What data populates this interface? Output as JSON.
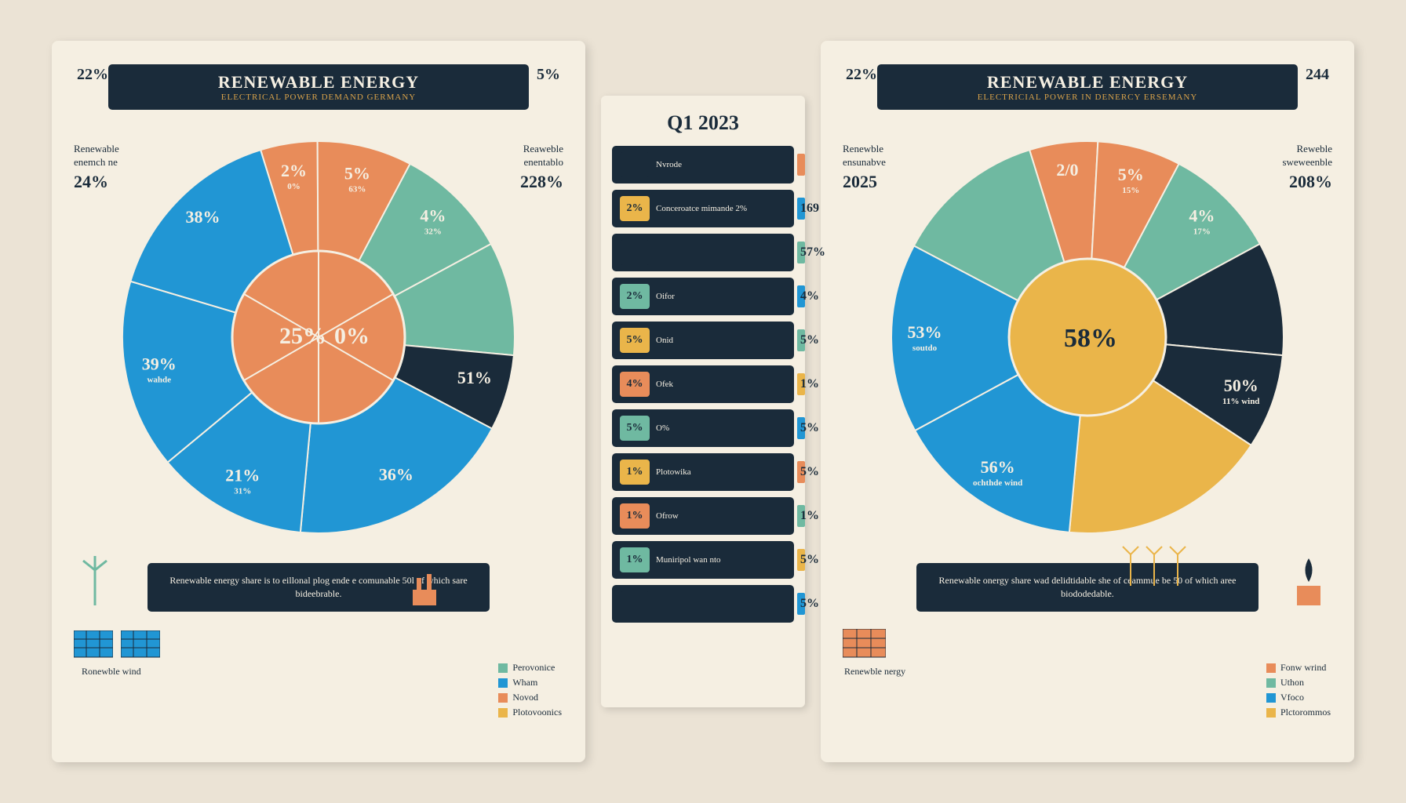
{
  "colors": {
    "bg": "#ebe3d5",
    "panel": "#f5efe2",
    "dark": "#1a2b3a",
    "blue": "#2196d4",
    "teal": "#6fb9a1",
    "orange": "#e88c5a",
    "gold": "#eab54a",
    "darkteal": "#3a8b7a",
    "ltorange": "#f4a470"
  },
  "left": {
    "corner_tl": "22%",
    "corner_tr": "5%",
    "title_main": "RENEWABLE ENERGY",
    "title_sub": "ELECTRICAL POWER DEMAND GERMANY",
    "side_l_label": "Renewable enemch ne",
    "side_l_val": "24%",
    "side_r_label": "Reaweble enentablo",
    "side_r_val": "228%",
    "center_a": "25%",
    "center_b": "0%",
    "caption": "Renewable energy share is to eillonal plog ende e comunable 50l of which sare bideebrable.",
    "bottom_left_label": "Ronewble wind",
    "legend_items": [
      {
        "color": "#6fb9a1",
        "label": "Perovonice"
      },
      {
        "color": "#2196d4",
        "label": "Wham"
      },
      {
        "color": "#e88c5a",
        "label": "Novod"
      },
      {
        "color": "#eab54a",
        "label": "Plotovoonics"
      }
    ],
    "pie": {
      "type": "pie",
      "outer_slices": [
        {
          "label": "2%",
          "sub": "0%",
          "value": 15,
          "color": "#e88c5a"
        },
        {
          "label": "5%",
          "sub": "63%",
          "value": 25,
          "color": "#e88c5a"
        },
        {
          "label": "4%",
          "sub": "32%",
          "value": 30,
          "color": "#6fb9a1"
        },
        {
          "label": "",
          "sub": "",
          "value": 30,
          "color": "#6fb9a1"
        },
        {
          "label": "51%",
          "sub": "",
          "value": 20,
          "color": "#1a2b3a"
        },
        {
          "label": "36%",
          "sub": "",
          "value": 60,
          "color": "#2196d4"
        },
        {
          "label": "21%",
          "sub": "31%",
          "value": 40,
          "color": "#2196d4"
        },
        {
          "label": "39%",
          "sub": "wahde",
          "value": 50,
          "color": "#2196d4"
        },
        {
          "label": "38%",
          "sub": "",
          "value": 50,
          "color": "#2196d4"
        }
      ],
      "inner_color": "#e88c5a"
    }
  },
  "middle": {
    "title": "Q1 2023",
    "rows": [
      {
        "chip_val": "",
        "chip_color": "#1a2b3a",
        "label": "Nvrode",
        "bar_color": "#e88c5a",
        "out_pct": ""
      },
      {
        "chip_val": "2%",
        "chip_color": "#eab54a",
        "label": "Conceroatce mimande 2%",
        "bar_color": "#2196d4",
        "out_pct": "169"
      },
      {
        "chip_val": "",
        "chip_color": "#1a2b3a",
        "label": "",
        "bar_color": "#6fb9a1",
        "out_pct": "57%"
      },
      {
        "chip_val": "2%",
        "chip_color": "#6fb9a1",
        "label": "Oifor",
        "bar_color": "#2196d4",
        "out_pct": "4%"
      },
      {
        "chip_val": "5%",
        "chip_color": "#eab54a",
        "label": "Onid",
        "bar_color": "#6fb9a1",
        "out_pct": "5%"
      },
      {
        "chip_val": "4%",
        "chip_color": "#e88c5a",
        "label": "Ofek",
        "bar_color": "#eab54a",
        "out_pct": "1%"
      },
      {
        "chip_val": "5%",
        "chip_color": "#6fb9a1",
        "label": "O%",
        "bar_color": "#2196d4",
        "out_pct": "5%"
      },
      {
        "chip_val": "1%",
        "chip_color": "#eab54a",
        "label": "Plotowika",
        "bar_color": "#e88c5a",
        "out_pct": "5%"
      },
      {
        "chip_val": "1%",
        "chip_color": "#e88c5a",
        "label": "Ofrow",
        "bar_color": "#6fb9a1",
        "out_pct": "1%"
      },
      {
        "chip_val": "1%",
        "chip_color": "#6fb9a1",
        "label": "Muniripol wan nto",
        "bar_color": "#eab54a",
        "out_pct": "5%"
      },
      {
        "chip_val": "",
        "chip_color": "#1a2b3a",
        "label": "",
        "bar_color": "#2196d4",
        "out_pct": "5%"
      }
    ]
  },
  "right": {
    "corner_tl": "22%",
    "corner_tr": "244",
    "title_main": "RENEWABLE ENERGY",
    "title_sub": "ELECTRICIAL POWER IN DENERCY ERSEMANY",
    "side_l_label": "Renewble ensunabve",
    "side_l_val": "2025",
    "side_r_label": "Reweble sweweenble",
    "side_r_val": "208%",
    "center_val": "58%",
    "caption": "Renewable onergy share wad delidtidable she of ceammue be 50 of which aree biododedable.",
    "bottom_left_label": "Renewble nergy",
    "legend_items": [
      {
        "color": "#e88c5a",
        "label": "Fonw wrind"
      },
      {
        "color": "#6fb9a1",
        "label": "Uthon"
      },
      {
        "color": "#2196d4",
        "label": "Vfoco"
      },
      {
        "color": "#eab54a",
        "label": "Plctorommos"
      }
    ],
    "pie": {
      "type": "pie",
      "outer_slices": [
        {
          "label": "2/0",
          "sub": "",
          "value": 18,
          "color": "#e88c5a"
        },
        {
          "label": "5%",
          "sub": "15%",
          "value": 22,
          "color": "#e88c5a"
        },
        {
          "label": "4%",
          "sub": "17%",
          "value": 30,
          "color": "#6fb9a1"
        },
        {
          "label": "",
          "sub": "",
          "value": 30,
          "color": "#1a2b3a"
        },
        {
          "label": "50%",
          "sub": "11% wind",
          "value": 25,
          "color": "#1a2b3a"
        },
        {
          "label": "",
          "sub": "",
          "value": 55,
          "color": "#eab54a"
        },
        {
          "label": "56%",
          "sub": "ochthde wind",
          "value": 50,
          "color": "#2196d4"
        },
        {
          "label": "53%",
          "sub": "soutdo",
          "value": 50,
          "color": "#2196d4"
        },
        {
          "label": "",
          "sub": "",
          "value": 40,
          "color": "#6fb9a1"
        }
      ],
      "inner_color": "#eab54a"
    }
  }
}
